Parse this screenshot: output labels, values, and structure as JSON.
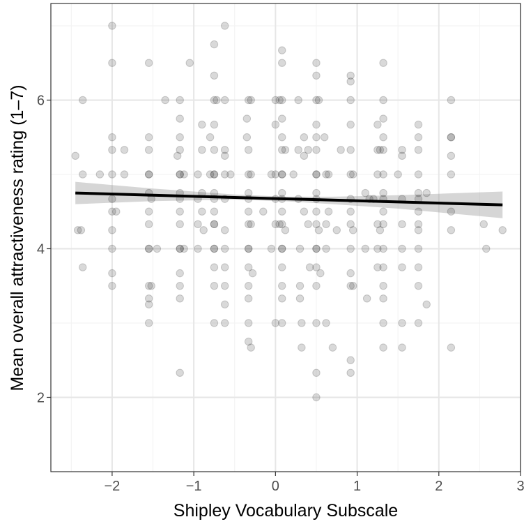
{
  "chart_data": {
    "type": "scatter",
    "title": "",
    "xlabel": "Shipley Vocabulary Subscale",
    "ylabel": "Mean overall attractiveness rating (1–7)",
    "xlim": [
      -2.75,
      3.0
    ],
    "ylim": [
      1.0,
      7.3
    ],
    "x_ticks": [
      -2,
      -1,
      0,
      1,
      2,
      3
    ],
    "x_tick_labels": [
      "−2",
      "−1",
      "0",
      "1",
      "2",
      "3"
    ],
    "y_ticks": [
      2,
      4,
      6
    ],
    "y_tick_labels": [
      "2",
      "4",
      "6"
    ],
    "grid": true,
    "point_color": "#000000",
    "point_alpha": 0.15,
    "line_color": "#000000",
    "band_color": "#999999",
    "trend_line": {
      "x": [
        -2.45,
        -1.5,
        -0.5,
        0.5,
        1.5,
        2.78
      ],
      "y": [
        4.75,
        4.72,
        4.69,
        4.66,
        4.63,
        4.59
      ]
    },
    "confidence_band": {
      "x": [
        -2.45,
        -1.5,
        -0.5,
        0.1,
        0.7,
        1.5,
        2.78
      ],
      "lower": [
        4.6,
        4.64,
        4.66,
        4.64,
        4.6,
        4.54,
        4.41
      ],
      "upper": [
        4.9,
        4.81,
        4.73,
        4.7,
        4.7,
        4.72,
        4.77
      ]
    },
    "points": [
      [
        -2.45,
        5.25
      ],
      [
        -2.42,
        4.25
      ],
      [
        -2.38,
        4.25
      ],
      [
        -2.36,
        6.0
      ],
      [
        -2.36,
        5.0
      ],
      [
        -2.36,
        3.75
      ],
      [
        -2.15,
        5.0
      ],
      [
        -2.0,
        7.0
      ],
      [
        -2.0,
        6.5
      ],
      [
        -2.0,
        5.5
      ],
      [
        -2.0,
        5.33
      ],
      [
        -2.0,
        5.0
      ],
      [
        -2.0,
        4.67
      ],
      [
        -2.0,
        4.5
      ],
      [
        -2.0,
        4.25
      ],
      [
        -2.0,
        4.0
      ],
      [
        -2.0,
        3.67
      ],
      [
        -2.0,
        3.5
      ],
      [
        -1.95,
        4.5
      ],
      [
        -1.85,
        5.33
      ],
      [
        -1.85,
        5.0
      ],
      [
        -1.55,
        6.5
      ],
      [
        -1.55,
        5.5
      ],
      [
        -1.55,
        5.33
      ],
      [
        -1.55,
        5.0
      ],
      [
        -1.55,
        5.0
      ],
      [
        -1.55,
        4.75
      ],
      [
        -1.55,
        4.5
      ],
      [
        -1.55,
        4.33
      ],
      [
        -1.55,
        4.0
      ],
      [
        -1.55,
        4.0
      ],
      [
        -1.55,
        3.5
      ],
      [
        -1.55,
        3.33
      ],
      [
        -1.55,
        3.25
      ],
      [
        -1.55,
        3.0
      ],
      [
        -1.52,
        4.67
      ],
      [
        -1.52,
        3.5
      ],
      [
        -1.45,
        4.0
      ],
      [
        -1.35,
        6.0
      ],
      [
        -1.2,
        5.25
      ],
      [
        -1.17,
        6.0
      ],
      [
        -1.17,
        5.75
      ],
      [
        -1.17,
        5.5
      ],
      [
        -1.17,
        5.33
      ],
      [
        -1.17,
        5.0
      ],
      [
        -1.17,
        5.0
      ],
      [
        -1.17,
        4.75
      ],
      [
        -1.17,
        4.67
      ],
      [
        -1.17,
        4.5
      ],
      [
        -1.17,
        4.33
      ],
      [
        -1.17,
        4.0
      ],
      [
        -1.17,
        4.0
      ],
      [
        -1.17,
        3.67
      ],
      [
        -1.17,
        3.5
      ],
      [
        -1.17,
        3.33
      ],
      [
        -1.17,
        2.33
      ],
      [
        -1.12,
        5.0
      ],
      [
        -1.12,
        4.0
      ],
      [
        -1.05,
        6.5
      ],
      [
        -0.95,
        5.0
      ],
      [
        -0.95,
        4.67
      ],
      [
        -0.95,
        4.33
      ],
      [
        -0.95,
        4.0
      ],
      [
        -0.9,
        5.67
      ],
      [
        -0.9,
        5.33
      ],
      [
        -0.9,
        4.75
      ],
      [
        -0.9,
        4.5
      ],
      [
        -0.88,
        4.25
      ],
      [
        -0.8,
        5.5
      ],
      [
        -0.8,
        5.0
      ],
      [
        -0.75,
        6.75
      ],
      [
        -0.75,
        6.33
      ],
      [
        -0.75,
        6.0
      ],
      [
        -0.75,
        5.67
      ],
      [
        -0.75,
        5.33
      ],
      [
        -0.75,
        5.0
      ],
      [
        -0.75,
        5.0
      ],
      [
        -0.75,
        4.75
      ],
      [
        -0.75,
        4.67
      ],
      [
        -0.75,
        4.5
      ],
      [
        -0.75,
        4.33
      ],
      [
        -0.75,
        4.33
      ],
      [
        -0.75,
        4.0
      ],
      [
        -0.75,
        4.0
      ],
      [
        -0.75,
        3.75
      ],
      [
        -0.75,
        3.5
      ],
      [
        -0.75,
        3.0
      ],
      [
        -0.72,
        6.0
      ],
      [
        -0.62,
        7.0
      ],
      [
        -0.62,
        6.0
      ],
      [
        -0.62,
        5.33
      ],
      [
        -0.62,
        5.25
      ],
      [
        -0.62,
        5.0
      ],
      [
        -0.62,
        4.67
      ],
      [
        -0.62,
        4.25
      ],
      [
        -0.62,
        4.0
      ],
      [
        -0.62,
        3.75
      ],
      [
        -0.62,
        3.5
      ],
      [
        -0.62,
        3.25
      ],
      [
        -0.62,
        3.0
      ],
      [
        -0.55,
        5.0
      ],
      [
        -0.35,
        5.75
      ],
      [
        -0.35,
        5.5
      ],
      [
        -0.33,
        6.0
      ],
      [
        -0.33,
        5.33
      ],
      [
        -0.33,
        5.0
      ],
      [
        -0.33,
        4.75
      ],
      [
        -0.33,
        4.67
      ],
      [
        -0.33,
        4.5
      ],
      [
        -0.33,
        4.33
      ],
      [
        -0.33,
        4.0
      ],
      [
        -0.33,
        4.0
      ],
      [
        -0.33,
        3.75
      ],
      [
        -0.33,
        3.5
      ],
      [
        -0.33,
        3.33
      ],
      [
        -0.33,
        3.0
      ],
      [
        -0.33,
        2.75
      ],
      [
        -0.3,
        6.0
      ],
      [
        -0.3,
        5.0
      ],
      [
        -0.3,
        4.33
      ],
      [
        -0.3,
        2.67
      ],
      [
        -0.28,
        3.67
      ],
      [
        -0.15,
        4.5
      ],
      [
        -0.05,
        5.0
      ],
      [
        -0.05,
        4.0
      ],
      [
        0.0,
        6.0
      ],
      [
        0.0,
        5.67
      ],
      [
        0.0,
        5.0
      ],
      [
        0.0,
        4.67
      ],
      [
        0.0,
        4.33
      ],
      [
        0.0,
        3.0
      ],
      [
        0.05,
        4.33
      ],
      [
        0.05,
        6.0
      ],
      [
        0.08,
        6.67
      ],
      [
        0.08,
        6.5
      ],
      [
        0.08,
        6.0
      ],
      [
        0.08,
        5.75
      ],
      [
        0.08,
        5.5
      ],
      [
        0.08,
        5.33
      ],
      [
        0.08,
        5.0
      ],
      [
        0.08,
        5.0
      ],
      [
        0.08,
        4.75
      ],
      [
        0.08,
        4.67
      ],
      [
        0.08,
        4.5
      ],
      [
        0.08,
        4.33
      ],
      [
        0.08,
        4.0
      ],
      [
        0.08,
        4.0
      ],
      [
        0.08,
        3.75
      ],
      [
        0.08,
        3.5
      ],
      [
        0.08,
        3.33
      ],
      [
        0.08,
        3.0
      ],
      [
        0.12,
        5.33
      ],
      [
        0.12,
        4.25
      ],
      [
        0.22,
        5.0
      ],
      [
        0.28,
        6.0
      ],
      [
        0.28,
        5.33
      ],
      [
        0.28,
        4.67
      ],
      [
        0.3,
        4.0
      ],
      [
        0.3,
        3.5
      ],
      [
        0.3,
        3.33
      ],
      [
        0.32,
        3.0
      ],
      [
        0.32,
        2.67
      ],
      [
        0.35,
        5.5
      ],
      [
        0.35,
        5.25
      ],
      [
        0.35,
        4.5
      ],
      [
        0.4,
        5.33
      ],
      [
        0.4,
        4.33
      ],
      [
        0.42,
        3.75
      ],
      [
        0.5,
        6.5
      ],
      [
        0.5,
        6.33
      ],
      [
        0.5,
        6.0
      ],
      [
        0.5,
        5.67
      ],
      [
        0.5,
        5.5
      ],
      [
        0.5,
        5.33
      ],
      [
        0.5,
        5.0
      ],
      [
        0.5,
        5.0
      ],
      [
        0.5,
        4.75
      ],
      [
        0.5,
        4.67
      ],
      [
        0.5,
        4.5
      ],
      [
        0.5,
        4.33
      ],
      [
        0.5,
        4.0
      ],
      [
        0.5,
        4.0
      ],
      [
        0.5,
        3.75
      ],
      [
        0.5,
        3.5
      ],
      [
        0.5,
        3.0
      ],
      [
        0.5,
        2.33
      ],
      [
        0.5,
        2.0
      ],
      [
        0.53,
        6.0
      ],
      [
        0.53,
        4.25
      ],
      [
        0.55,
        3.67
      ],
      [
        0.6,
        5.5
      ],
      [
        0.62,
        5.0
      ],
      [
        0.62,
        4.33
      ],
      [
        0.62,
        4.0
      ],
      [
        0.62,
        3.0
      ],
      [
        0.65,
        5.0
      ],
      [
        0.65,
        4.5
      ],
      [
        0.7,
        2.67
      ],
      [
        0.75,
        4.25
      ],
      [
        0.8,
        5.33
      ],
      [
        0.92,
        6.33
      ],
      [
        0.92,
        6.25
      ],
      [
        0.92,
        6.0
      ],
      [
        0.92,
        5.67
      ],
      [
        0.92,
        5.33
      ],
      [
        0.92,
        5.0
      ],
      [
        0.92,
        4.67
      ],
      [
        0.92,
        4.5
      ],
      [
        0.92,
        4.33
      ],
      [
        0.92,
        4.0
      ],
      [
        0.92,
        3.67
      ],
      [
        0.92,
        3.5
      ],
      [
        0.92,
        2.5
      ],
      [
        0.92,
        2.33
      ],
      [
        0.95,
        5.0
      ],
      [
        0.95,
        4.25
      ],
      [
        0.95,
        3.5
      ],
      [
        1.1,
        4.75
      ],
      [
        1.1,
        4.0
      ],
      [
        1.12,
        3.33
      ],
      [
        1.15,
        4.67
      ],
      [
        1.2,
        4.67
      ],
      [
        1.25,
        5.67
      ],
      [
        1.25,
        5.33
      ],
      [
        1.25,
        5.0
      ],
      [
        1.25,
        4.33
      ],
      [
        1.25,
        4.0
      ],
      [
        1.25,
        3.75
      ],
      [
        1.32,
        6.5
      ],
      [
        1.32,
        6.0
      ],
      [
        1.32,
        5.75
      ],
      [
        1.32,
        5.5
      ],
      [
        1.32,
        5.33
      ],
      [
        1.32,
        5.0
      ],
      [
        1.32,
        4.75
      ],
      [
        1.32,
        4.67
      ],
      [
        1.32,
        4.5
      ],
      [
        1.32,
        4.33
      ],
      [
        1.32,
        4.0
      ],
      [
        1.32,
        3.75
      ],
      [
        1.32,
        3.5
      ],
      [
        1.32,
        3.33
      ],
      [
        1.32,
        3.0
      ],
      [
        1.32,
        2.67
      ],
      [
        1.28,
        5.33
      ],
      [
        1.28,
        4.25
      ],
      [
        1.5,
        5.0
      ],
      [
        1.55,
        5.33
      ],
      [
        1.55,
        5.25
      ],
      [
        1.55,
        4.67
      ],
      [
        1.55,
        4.33
      ],
      [
        1.55,
        4.0
      ],
      [
        1.55,
        3.75
      ],
      [
        1.55,
        3.0
      ],
      [
        1.55,
        2.67
      ],
      [
        1.75,
        5.67
      ],
      [
        1.75,
        5.5
      ],
      [
        1.75,
        5.33
      ],
      [
        1.75,
        5.0
      ],
      [
        1.75,
        4.75
      ],
      [
        1.75,
        4.67
      ],
      [
        1.75,
        4.5
      ],
      [
        1.75,
        4.33
      ],
      [
        1.75,
        4.25
      ],
      [
        1.75,
        4.0
      ],
      [
        1.75,
        3.75
      ],
      [
        1.75,
        3.5
      ],
      [
        1.75,
        3.0
      ],
      [
        1.85,
        4.75
      ],
      [
        1.85,
        3.25
      ],
      [
        2.15,
        6.0
      ],
      [
        2.15,
        5.5
      ],
      [
        2.15,
        5.5
      ],
      [
        2.15,
        5.25
      ],
      [
        2.15,
        5.0
      ],
      [
        2.15,
        4.5
      ],
      [
        2.15,
        4.25
      ],
      [
        2.15,
        2.67
      ],
      [
        2.55,
        4.33
      ],
      [
        2.58,
        4.0
      ],
      [
        2.78,
        4.25
      ]
    ]
  }
}
